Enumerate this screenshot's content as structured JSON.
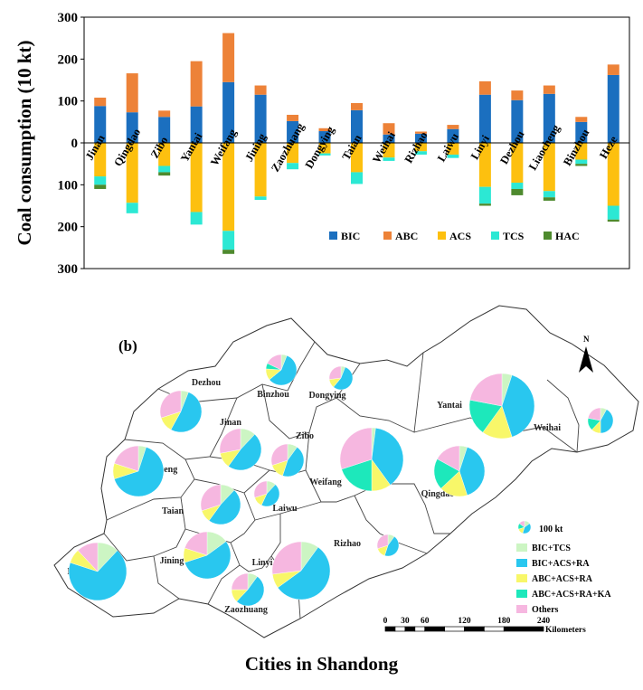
{
  "chart_data": [
    {
      "type": "bar",
      "stacked": true,
      "ylabel": "Coal consumption (10 kt)",
      "ylim": [
        -300,
        300
      ],
      "yticks": [
        300,
        200,
        100,
        0,
        100,
        200,
        300
      ],
      "categories": [
        "Jinan",
        "Qingdao",
        "Zibo",
        "Yantai",
        "Weifang",
        "Jining",
        "Zaozhuang",
        "Dongying",
        "Taian",
        "Weihai",
        "Rizhao",
        "Laiwu",
        "Linyi",
        "Dezhou",
        "Liaocheng",
        "Binzhou",
        "Heze"
      ],
      "series": [
        {
          "name": "BIC",
          "color": "#1b6fbf",
          "direction": "up",
          "values": [
            88,
            73,
            62,
            87,
            145,
            115,
            52,
            28,
            78,
            20,
            22,
            33,
            115,
            102,
            117,
            50,
            162
          ]
        },
        {
          "name": "ABC",
          "color": "#ed8238",
          "direction": "up",
          "values": [
            20,
            93,
            15,
            108,
            117,
            22,
            15,
            7,
            17,
            27,
            5,
            10,
            32,
            23,
            20,
            12,
            25
          ]
        },
        {
          "name": "ACS",
          "color": "#fdc00f",
          "direction": "down",
          "values": [
            80,
            143,
            55,
            165,
            210,
            128,
            48,
            25,
            70,
            35,
            20,
            28,
            105,
            95,
            115,
            40,
            150
          ]
        },
        {
          "name": "TCS",
          "color": "#2ce8d4",
          "direction": "down",
          "values": [
            20,
            25,
            15,
            30,
            45,
            8,
            15,
            5,
            28,
            8,
            8,
            8,
            40,
            15,
            15,
            10,
            33
          ]
        },
        {
          "name": "HAC",
          "color": "#4e8a2e",
          "direction": "down",
          "values": [
            10,
            0,
            8,
            0,
            10,
            0,
            0,
            0,
            0,
            0,
            0,
            0,
            5,
            15,
            8,
            5,
            5
          ]
        }
      ],
      "legend": "bottom-right inside plot"
    },
    {
      "type": "pie",
      "panel_label": "(b)",
      "xlabel": "Cities in Shandong",
      "legend_reference_label": "100 kt",
      "slices_legend": [
        {
          "name": "BIC+TCS",
          "color": "#ccf5c3"
        },
        {
          "name": "BIC+ACS+RA",
          "color": "#29c7ef"
        },
        {
          "name": "ABC+ACS+RA",
          "color": "#f8f769"
        },
        {
          "name": "ABC+ACS+RA+KA",
          "color": "#1de8bb"
        },
        {
          "name": "Others",
          "color": "#f6b7e0"
        }
      ],
      "north_label": "N",
      "scale_labels": [
        "0",
        "30",
        "60",
        "120",
        "180",
        "240"
      ],
      "scale_unit": "Kilometers",
      "city_labels": [
        "Dezhou",
        "Binzhou",
        "Dongying",
        "Yantai",
        "Weihai",
        "Jinan",
        "Zibo",
        "Liaocheng",
        "Weifang",
        "Qingdao",
        "Taian",
        "Laiwu",
        "Jining",
        "Heze",
        "Linyi",
        "Rizhao",
        "Zaozhuang"
      ],
      "pies": [
        {
          "city": "Dezhou",
          "values": [
            0.06,
            0.52,
            0.12,
            0,
            0.3
          ]
        },
        {
          "city": "Binzhou",
          "values": [
            0.06,
            0.58,
            0.12,
            0.06,
            0.18
          ]
        },
        {
          "city": "Dongying",
          "values": [
            0.06,
            0.55,
            0.12,
            0,
            0.27
          ]
        },
        {
          "city": "Yantai",
          "values": [
            0.05,
            0.4,
            0.15,
            0.18,
            0.22
          ]
        },
        {
          "city": "Weihai",
          "values": [
            0.08,
            0.42,
            0.12,
            0.16,
            0.22
          ]
        },
        {
          "city": "Jinan",
          "values": [
            0.12,
            0.48,
            0.12,
            0,
            0.28
          ]
        },
        {
          "city": "Zibo",
          "values": [
            0.1,
            0.45,
            0.15,
            0,
            0.3
          ]
        },
        {
          "city": "Liaocheng",
          "values": [
            0.05,
            0.65,
            0.1,
            0,
            0.2
          ]
        },
        {
          "city": "Weifang",
          "values": [
            0.02,
            0.38,
            0.1,
            0.2,
            0.3
          ]
        },
        {
          "city": "Qingdao",
          "values": [
            0.05,
            0.4,
            0.18,
            0.2,
            0.17
          ]
        },
        {
          "city": "Taian",
          "values": [
            0.12,
            0.48,
            0.1,
            0,
            0.3
          ]
        },
        {
          "city": "Laiwu",
          "values": [
            0.12,
            0.45,
            0.13,
            0,
            0.3
          ]
        },
        {
          "city": "Jining",
          "values": [
            0.15,
            0.55,
            0.1,
            0,
            0.2
          ]
        },
        {
          "city": "Heze",
          "values": [
            0.12,
            0.68,
            0.08,
            0,
            0.12
          ]
        },
        {
          "city": "Linyi",
          "values": [
            0.1,
            0.55,
            0.08,
            0,
            0.27
          ]
        },
        {
          "city": "Rizhao",
          "values": [
            0.1,
            0.45,
            0.15,
            0,
            0.3
          ]
        },
        {
          "city": "Zaozhuang",
          "values": [
            0.1,
            0.52,
            0.13,
            0,
            0.25
          ]
        }
      ]
    }
  ],
  "legend_labels": {
    "bic": "BIC",
    "abc": "ABC",
    "acs": "ACS",
    "tcs": "TCS",
    "hac": "HAC"
  },
  "footer": "Cities in Shandong"
}
